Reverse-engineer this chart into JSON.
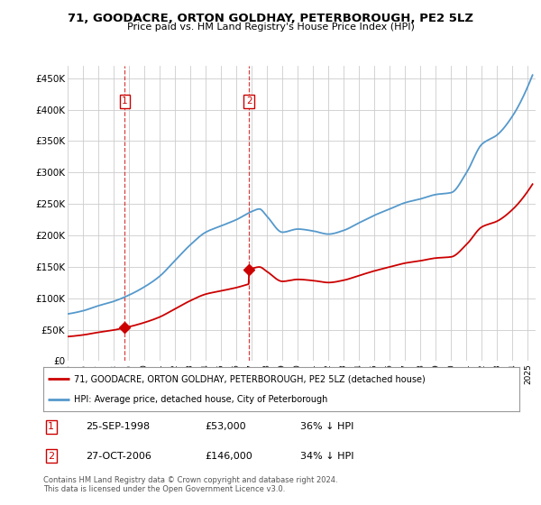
{
  "title": "71, GOODACRE, ORTON GOLDHAY, PETERBOROUGH, PE2 5LZ",
  "subtitle": "Price paid vs. HM Land Registry's House Price Index (HPI)",
  "ylabel_ticks": [
    "£0",
    "£50K",
    "£100K",
    "£150K",
    "£200K",
    "£250K",
    "£300K",
    "£350K",
    "£400K",
    "£450K"
  ],
  "ytick_values": [
    0,
    50000,
    100000,
    150000,
    200000,
    250000,
    300000,
    350000,
    400000,
    450000
  ],
  "ylim": [
    0,
    470000
  ],
  "xlim_start": 1995.0,
  "xlim_end": 2025.5,
  "purchase1_year": 1998.73,
  "purchase1_price": 53000,
  "purchase2_year": 2006.82,
  "purchase2_price": 146000,
  "legend_property": "71, GOODACRE, ORTON GOLDHAY, PETERBOROUGH, PE2 5LZ (detached house)",
  "legend_hpi": "HPI: Average price, detached house, City of Peterborough",
  "line_color_property": "#cc0000",
  "line_color_hpi": "#5599cc",
  "background_color": "#ffffff",
  "grid_color": "#cccccc",
  "footnote": "Contains HM Land Registry data © Crown copyright and database right 2024.\nThis data is licensed under the Open Government Licence v3.0."
}
